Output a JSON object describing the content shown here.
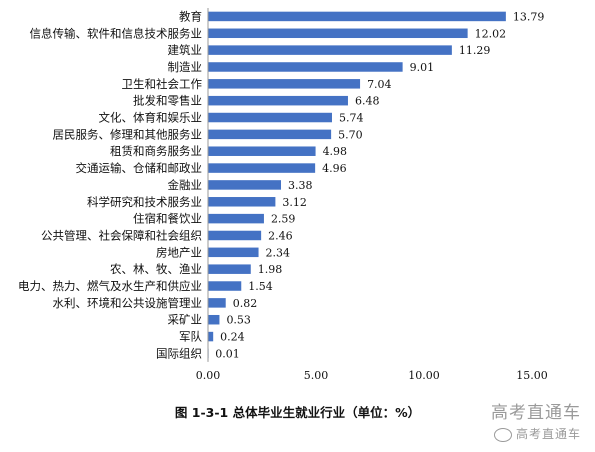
{
  "chart_data": {
    "type": "bar",
    "orientation": "horizontal",
    "title": "图 1-3-1  总体毕业生就业行业（单位：%）",
    "xlim": [
      0,
      15
    ],
    "xticks": [
      "0.00",
      "5.00",
      "10.00",
      "15.00"
    ],
    "grid": false,
    "bar_color": "#4472C4",
    "categories": [
      "教育",
      "信息传输、软件和信息技术服务业",
      "建筑业",
      "制造业",
      "卫生和社会工作",
      "批发和零售业",
      "文化、体育和娱乐业",
      "居民服务、修理和其他服务业",
      "租赁和商务服务业",
      "交通运输、仓储和邮政业",
      "金融业",
      "科学研究和技术服务业",
      "住宿和餐饮业",
      "公共管理、社会保障和社会组织",
      "房地产业",
      "农、林、牧、渔业",
      "电力、热力、燃气及水生产和供应业",
      "水利、环境和公共设施管理业",
      "采矿业",
      "军队",
      "国际组织"
    ],
    "values": [
      13.79,
      12.02,
      11.29,
      9.01,
      7.04,
      6.48,
      5.74,
      5.7,
      4.98,
      4.96,
      3.38,
      3.12,
      2.59,
      2.46,
      2.34,
      1.98,
      1.54,
      0.82,
      0.53,
      0.24,
      0.01
    ],
    "value_labels": [
      "13.79",
      "12.02",
      "11.29",
      "9.01",
      "7.04",
      "6.48",
      "5.74",
      "5.70",
      "4.98",
      "4.96",
      "3.38",
      "3.12",
      "2.59",
      "2.46",
      "2.34",
      "1.98",
      "1.54",
      "0.82",
      "0.53",
      "0.24",
      "0.01"
    ]
  },
  "watermark": {
    "main": "高考直通车",
    "small": "高考直通车"
  }
}
